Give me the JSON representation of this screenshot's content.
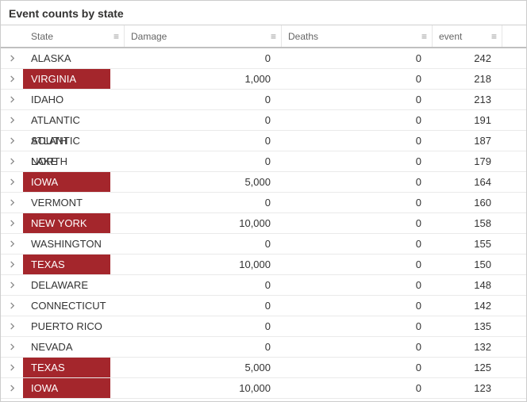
{
  "title": "Event counts by state",
  "columns": {
    "state": "State",
    "damage": "Damage",
    "deaths": "Deaths",
    "event": "event"
  },
  "highlight_color": "#a4262c",
  "rows": [
    {
      "state": "ALASKA",
      "damage": "0",
      "deaths": "0",
      "event": "242",
      "highlight": false
    },
    {
      "state": "VIRGINIA",
      "damage": "1,000",
      "deaths": "0",
      "event": "218",
      "highlight": true
    },
    {
      "state": "IDAHO",
      "damage": "0",
      "deaths": "0",
      "event": "213",
      "highlight": false
    },
    {
      "state": "ATLANTIC SOUTH",
      "damage": "0",
      "deaths": "0",
      "event": "191",
      "highlight": false
    },
    {
      "state": "ATLANTIC NORTH",
      "damage": "0",
      "deaths": "0",
      "event": "187",
      "highlight": false
    },
    {
      "state": "LAKE MICHIGAN",
      "damage": "0",
      "deaths": "0",
      "event": "179",
      "highlight": false
    },
    {
      "state": "IOWA",
      "damage": "5,000",
      "deaths": "0",
      "event": "164",
      "highlight": true
    },
    {
      "state": "VERMONT",
      "damage": "0",
      "deaths": "0",
      "event": "160",
      "highlight": false
    },
    {
      "state": "NEW YORK",
      "damage": "10,000",
      "deaths": "0",
      "event": "158",
      "highlight": true
    },
    {
      "state": "WASHINGTON",
      "damage": "0",
      "deaths": "0",
      "event": "155",
      "highlight": false
    },
    {
      "state": "TEXAS",
      "damage": "10,000",
      "deaths": "0",
      "event": "150",
      "highlight": true
    },
    {
      "state": "DELAWARE",
      "damage": "0",
      "deaths": "0",
      "event": "148",
      "highlight": false
    },
    {
      "state": "CONNECTICUT",
      "damage": "0",
      "deaths": "0",
      "event": "142",
      "highlight": false
    },
    {
      "state": "PUERTO RICO",
      "damage": "0",
      "deaths": "0",
      "event": "135",
      "highlight": false
    },
    {
      "state": "NEVADA",
      "damage": "0",
      "deaths": "0",
      "event": "132",
      "highlight": false
    },
    {
      "state": "TEXAS",
      "damage": "5,000",
      "deaths": "0",
      "event": "125",
      "highlight": true
    },
    {
      "state": "IOWA",
      "damage": "10,000",
      "deaths": "0",
      "event": "123",
      "highlight": true
    }
  ]
}
